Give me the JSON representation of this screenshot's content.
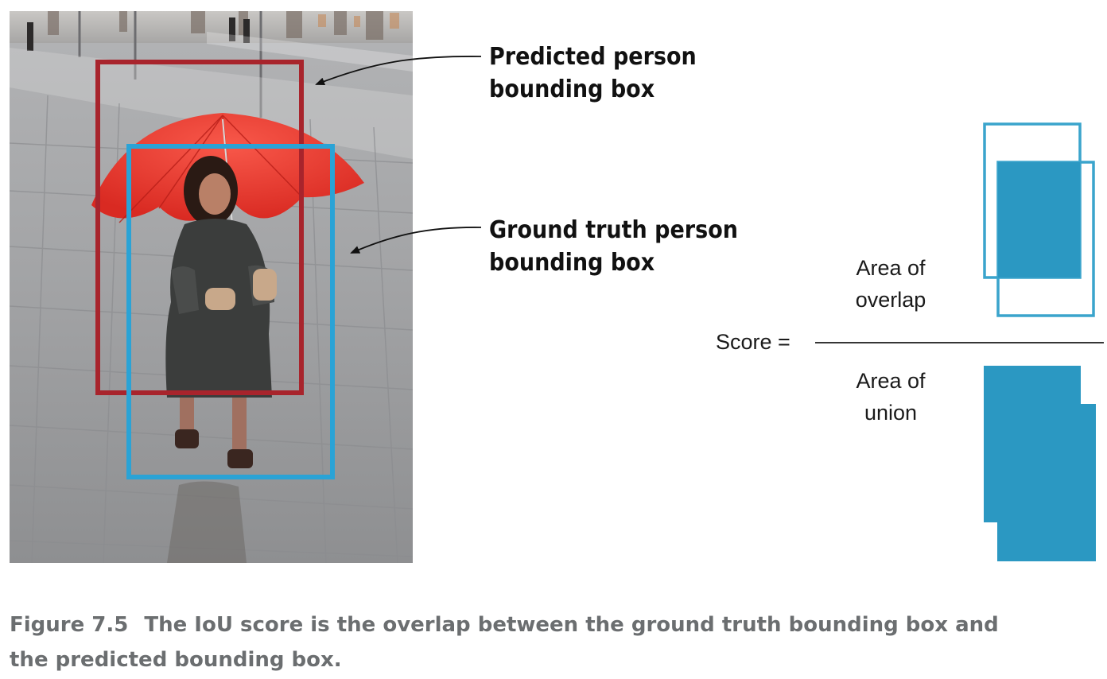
{
  "callouts": {
    "predicted": [
      "Predicted person",
      "bounding box"
    ],
    "ground_truth": [
      "Ground truth person",
      "bounding box"
    ]
  },
  "formula": {
    "score_label": "Score =",
    "numerator": [
      "Area of",
      "overlap"
    ],
    "denominator": [
      "Area of",
      "union"
    ]
  },
  "caption": {
    "number": "Figure 7.5",
    "line1_text": "The IoU score is the overlap between the ground truth bounding box and",
    "line2_text": "the predicted bounding box."
  },
  "colors": {
    "predicted_box": "#a8242c",
    "ground_truth_box": "#2aa3d6",
    "iou_fill": "#2b98c2",
    "iou_outline": "#3aa4cc",
    "umbrella": "#ec3a30",
    "caption_text": "#6b6e70"
  }
}
